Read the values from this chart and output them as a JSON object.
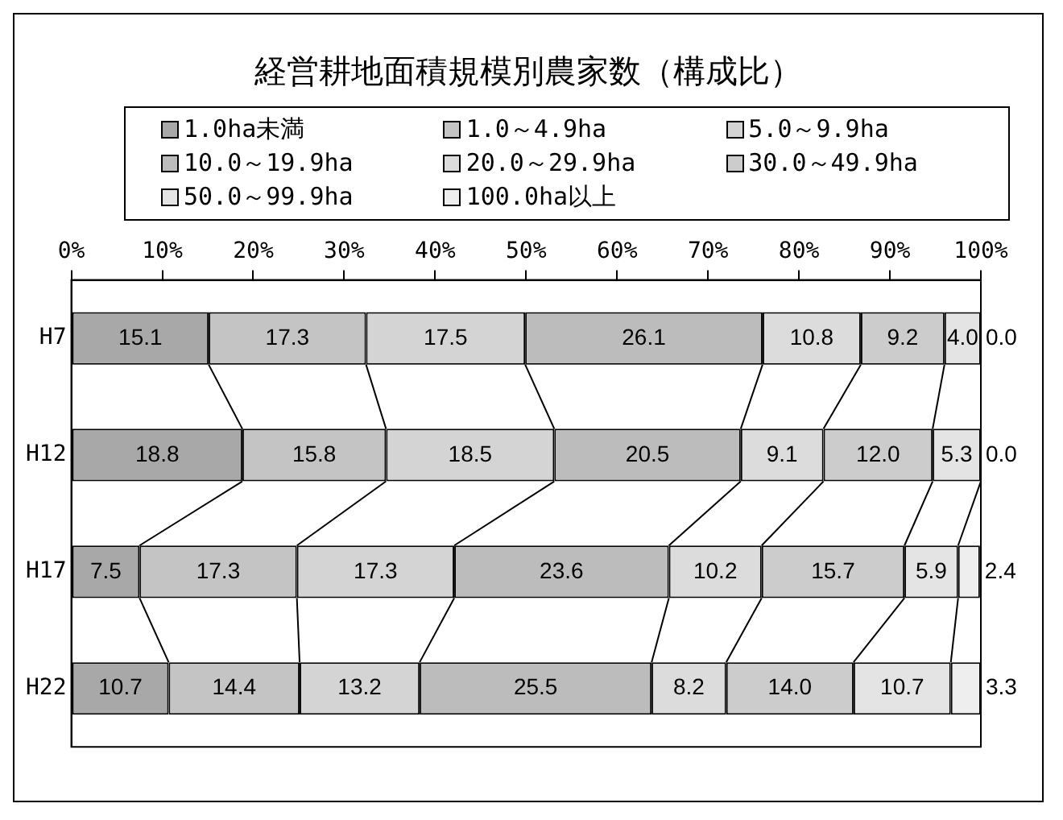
{
  "chart_data": {
    "type": "bar",
    "orientation": "horizontal",
    "stacked": true,
    "title": "経営耕地面積規模別農家数（構成比）",
    "categories": [
      "H7",
      "H12",
      "H17",
      "H22"
    ],
    "xlim": [
      0,
      100
    ],
    "xticks": [
      {
        "value": 0,
        "label": "0%"
      },
      {
        "value": 10,
        "label": "10%"
      },
      {
        "value": 20,
        "label": "20%"
      },
      {
        "value": 30,
        "label": "30%"
      },
      {
        "value": 40,
        "label": "40%"
      },
      {
        "value": 50,
        "label": "50%"
      },
      {
        "value": 60,
        "label": "60%"
      },
      {
        "value": 70,
        "label": "70%"
      },
      {
        "value": 80,
        "label": "80%"
      },
      {
        "value": 90,
        "label": "90%"
      },
      {
        "value": 100,
        "label": "100%"
      }
    ],
    "grid": false,
    "legend": "top",
    "series": [
      {
        "name": "1.0ha未満",
        "color": "#a8a8a8",
        "values": [
          15.1,
          18.8,
          7.5,
          10.7
        ],
        "value_labels": [
          "15.1",
          "18.8",
          "7.5",
          "10.7"
        ]
      },
      {
        "name": "1.0～4.9ha",
        "color": "#c4c4c4",
        "values": [
          17.3,
          15.8,
          17.3,
          14.4
        ],
        "value_labels": [
          "17.3",
          "15.8",
          "17.3",
          "14.4"
        ]
      },
      {
        "name": "5.0～9.9ha",
        "color": "#d4d4d4",
        "values": [
          17.5,
          18.5,
          17.3,
          13.2
        ],
        "value_labels": [
          "17.5",
          "18.5",
          "17.3",
          "13.2"
        ]
      },
      {
        "name": "10.0～19.9ha",
        "color": "#bcbcbc",
        "values": [
          26.1,
          20.5,
          23.6,
          25.5
        ],
        "value_labels": [
          "26.1",
          "20.5",
          "23.6",
          "25.5"
        ]
      },
      {
        "name": "20.0～29.9ha",
        "color": "#dcdcdc",
        "values": [
          10.8,
          9.1,
          10.2,
          8.2
        ],
        "value_labels": [
          "10.8",
          "9.1",
          "10.2",
          "8.2"
        ]
      },
      {
        "name": "30.0～49.9ha",
        "color": "#cccccc",
        "values": [
          9.2,
          12.0,
          15.7,
          14.0
        ],
        "value_labels": [
          "9.2",
          "12.0",
          "15.7",
          "14.0"
        ]
      },
      {
        "name": "50.0～99.9ha",
        "color": "#e4e4e4",
        "values": [
          4.0,
          5.3,
          5.9,
          10.7
        ],
        "value_labels": [
          "4.0",
          "5.3",
          "5.9",
          "10.7"
        ]
      },
      {
        "name": "100.0ha以上",
        "color": "#eeeeee",
        "values": [
          0.0,
          0.0,
          2.4,
          3.3
        ],
        "value_labels": [
          "0.0",
          "0.0",
          "2.4",
          "3.3"
        ]
      }
    ]
  }
}
